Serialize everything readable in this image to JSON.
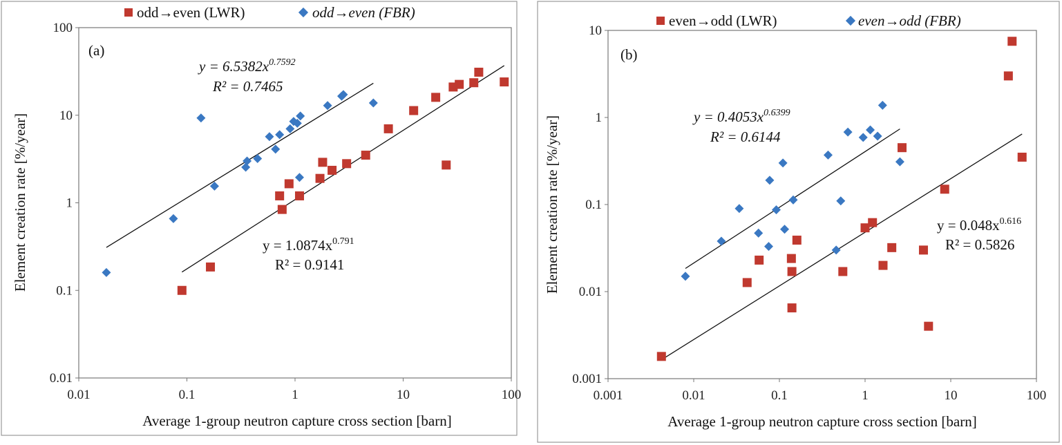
{
  "chart_data": [
    {
      "type": "scatter",
      "panel_label": "(a)",
      "xscale": "log",
      "yscale": "log",
      "xlim": [
        0.01,
        100
      ],
      "ylim": [
        0.01,
        100
      ],
      "xlabel": "Average  1-group neutron capture cross section [barn]",
      "ylabel": "Element creation rate [%/year]",
      "xticks": [
        {
          "v": 0.01,
          "label": "0.01"
        },
        {
          "v": 0.1,
          "label": "0.1"
        },
        {
          "v": 1,
          "label": "1"
        },
        {
          "v": 10,
          "label": "10"
        },
        {
          "v": 100,
          "label": "100"
        }
      ],
      "yticks": [
        {
          "v": 0.01,
          "label": "0.01"
        },
        {
          "v": 0.1,
          "label": "0.1"
        },
        {
          "v": 1,
          "label": "1"
        },
        {
          "v": 10,
          "label": "10"
        },
        {
          "v": 100,
          "label": "100"
        }
      ],
      "legend": [
        {
          "name": "odd→even (LWR)",
          "marker": "square",
          "color": "#c0392f",
          "italic": false
        },
        {
          "name": "odd→even (FBR)",
          "marker": "diamond",
          "color": "#3a78c2",
          "italic": true
        }
      ],
      "series": [
        {
          "name": "odd→even (LWR)",
          "marker": "square",
          "color": "#c0392f",
          "points": [
            [
              0.09,
              0.1
            ],
            [
              0.165,
              0.185
            ],
            [
              0.72,
              1.2
            ],
            [
              0.76,
              0.84
            ],
            [
              0.88,
              1.65
            ],
            [
              1.1,
              1.2
            ],
            [
              1.7,
              1.9
            ],
            [
              1.8,
              2.9
            ],
            [
              2.2,
              2.35
            ],
            [
              3.0,
              2.8
            ],
            [
              4.5,
              3.5
            ],
            [
              7.3,
              7.0
            ],
            [
              12.5,
              11.3
            ],
            [
              20,
              16
            ],
            [
              25,
              2.7
            ],
            [
              29,
              21
            ],
            [
              33,
              22.5
            ],
            [
              45,
              23.5
            ],
            [
              50,
              31
            ],
            [
              86,
              24
            ]
          ],
          "fit": {
            "a": 1.0874,
            "b": 0.791,
            "xrange": [
              0.09,
              86
            ],
            "eq_prefix": "y = 1.0874x",
            "exp": "0.791",
            "r2": "R² = 0.9141"
          }
        },
        {
          "name": "odd→even (FBR)",
          "marker": "diamond",
          "color": "#3a78c2",
          "points": [
            [
              0.018,
              0.16
            ],
            [
              0.075,
              0.66
            ],
            [
              0.135,
              9.3
            ],
            [
              0.18,
              1.55
            ],
            [
              0.35,
              2.55
            ],
            [
              0.36,
              3.0
            ],
            [
              0.45,
              3.2
            ],
            [
              0.58,
              5.7
            ],
            [
              0.66,
              4.1
            ],
            [
              0.72,
              6.0
            ],
            [
              0.9,
              7.0
            ],
            [
              0.97,
              8.5
            ],
            [
              1.05,
              8.1
            ],
            [
              1.12,
              9.8
            ],
            [
              1.1,
              1.95
            ],
            [
              2.0,
              12.9
            ],
            [
              2.7,
              16.5
            ],
            [
              2.8,
              17.2
            ],
            [
              5.3,
              13.8
            ]
          ],
          "fit": {
            "a": 6.5382,
            "b": 0.7592,
            "xrange": [
              0.018,
              5.3
            ],
            "eq_prefix": "y = 6.5382x",
            "exp": "0.7592",
            "r2": "R² = 0.7465"
          }
        }
      ]
    },
    {
      "type": "scatter",
      "panel_label": "(b)",
      "xscale": "log",
      "yscale": "log",
      "xlim": [
        0.001,
        100
      ],
      "ylim": [
        0.001,
        10
      ],
      "xlabel": "Average  1-group neutron capture cross section [barn]",
      "ylabel": "Element creation rate [%/year]",
      "xticks": [
        {
          "v": 0.001,
          "label": "0.001"
        },
        {
          "v": 0.01,
          "label": "0.01"
        },
        {
          "v": 0.1,
          "label": "0.1"
        },
        {
          "v": 1,
          "label": "1"
        },
        {
          "v": 10,
          "label": "10"
        },
        {
          "v": 100,
          "label": "100"
        }
      ],
      "yticks": [
        {
          "v": 0.001,
          "label": "0.001"
        },
        {
          "v": 0.01,
          "label": "0.01"
        },
        {
          "v": 0.1,
          "label": "0.1"
        },
        {
          "v": 1,
          "label": "1"
        },
        {
          "v": 10,
          "label": "10"
        }
      ],
      "legend": [
        {
          "name": "even→odd (LWR)",
          "marker": "square",
          "color": "#c0392f",
          "italic": false
        },
        {
          "name": "even→odd (FBR)",
          "marker": "diamond",
          "color": "#3a78c2",
          "italic": true
        }
      ],
      "series": [
        {
          "name": "even→odd (LWR)",
          "marker": "square",
          "color": "#c0392f",
          "points": [
            [
              0.0042,
              0.0018
            ],
            [
              0.042,
              0.0127
            ],
            [
              0.058,
              0.023
            ],
            [
              0.138,
              0.024
            ],
            [
              0.14,
              0.017
            ],
            [
              0.14,
              0.0065
            ],
            [
              0.16,
              0.039
            ],
            [
              0.55,
              0.017
            ],
            [
              1.0,
              0.054
            ],
            [
              1.22,
              0.062
            ],
            [
              1.62,
              0.02
            ],
            [
              2.05,
              0.032
            ],
            [
              2.7,
              0.45
            ],
            [
              4.8,
              0.03
            ],
            [
              5.5,
              0.004
            ],
            [
              8.5,
              0.15
            ],
            [
              47,
              3.0
            ],
            [
              52,
              7.5
            ],
            [
              68,
              0.35
            ]
          ],
          "fit": {
            "a": 0.048,
            "b": 0.616,
            "xrange": [
              0.0042,
              68
            ],
            "eq_prefix": "y = 0.048x",
            "exp": "0.616",
            "r2": "R² = 0.5826"
          }
        },
        {
          "name": "even→odd (FBR)",
          "marker": "diamond",
          "color": "#3a78c2",
          "points": [
            [
              0.008,
              0.015
            ],
            [
              0.021,
              0.038
            ],
            [
              0.034,
              0.09
            ],
            [
              0.057,
              0.047
            ],
            [
              0.075,
              0.033
            ],
            [
              0.077,
              0.19
            ],
            [
              0.092,
              0.087
            ],
            [
              0.11,
              0.3
            ],
            [
              0.115,
              0.052
            ],
            [
              0.145,
              0.113
            ],
            [
              0.37,
              0.37
            ],
            [
              0.46,
              0.03
            ],
            [
              0.52,
              0.11
            ],
            [
              0.63,
              0.68
            ],
            [
              0.95,
              0.59
            ],
            [
              1.15,
              0.72
            ],
            [
              1.4,
              0.61
            ],
            [
              1.6,
              1.38
            ],
            [
              2.55,
              0.31
            ]
          ],
          "fit": {
            "a": 0.4053,
            "b": 0.6399,
            "xrange": [
              0.008,
              2.55
            ],
            "eq_prefix": "y = 0.4053x",
            "exp": "0.6399",
            "r2": "R² = 0.6144"
          }
        }
      ]
    }
  ]
}
